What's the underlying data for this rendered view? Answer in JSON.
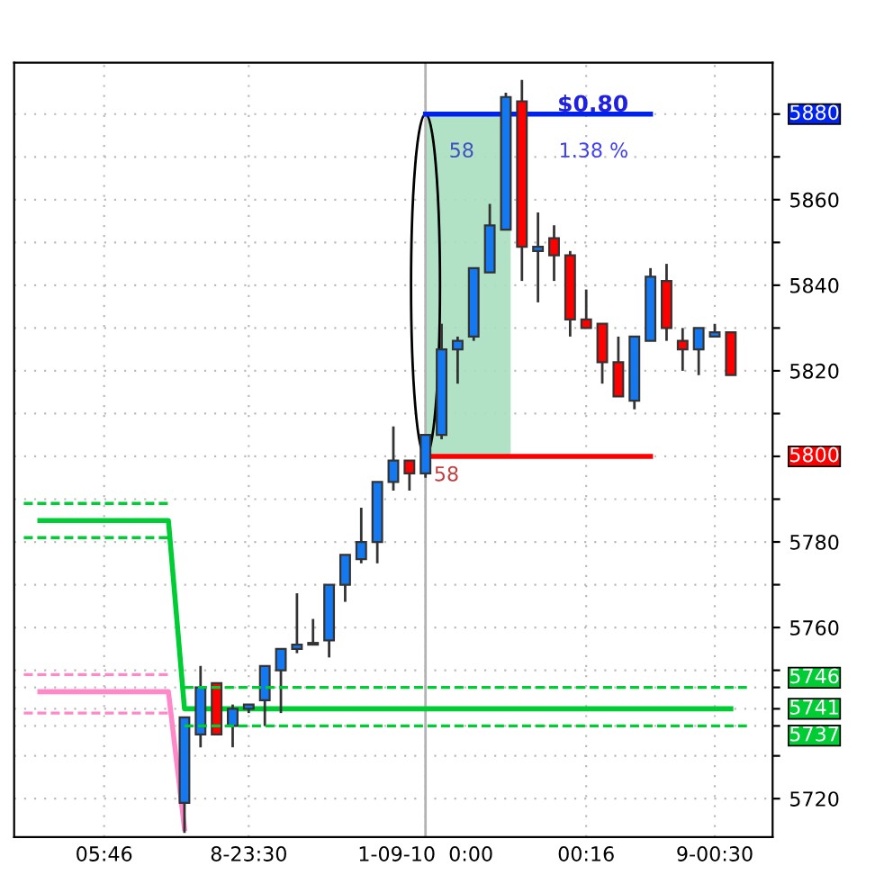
{
  "chart_data": {
    "type": "candlestick",
    "categories": [
      null,
      null,
      null,
      null,
      null,
      "05:46",
      null,
      null,
      null,
      null,
      null,
      null,
      null,
      null,
      "8-23:30",
      null,
      null,
      null,
      null,
      null,
      null,
      null,
      null,
      null,
      null,
      "1-09-10  0:00",
      null,
      null,
      null,
      null,
      null,
      null,
      null,
      null,
      null,
      "00:16",
      null,
      null,
      null,
      null,
      null,
      null,
      null,
      "9-00:30",
      null,
      null,
      null
    ],
    "ohlc": [
      null,
      null,
      null,
      null,
      null,
      null,
      null,
      null,
      null,
      null,
      [
        5719,
        5739,
        5712,
        5739
      ],
      [
        5735,
        5751,
        5732,
        5746
      ],
      [
        5747,
        5747,
        5735,
        5735
      ],
      [
        5737,
        5742,
        5732,
        5741
      ],
      [
        5741,
        5742,
        5740,
        5742
      ],
      [
        5743,
        5751,
        5737,
        5751
      ],
      [
        5750,
        5755,
        5740,
        5755
      ],
      [
        5755,
        5768,
        5754,
        5756
      ],
      [
        5756,
        5762,
        5756,
        5756
      ],
      [
        5757,
        5770,
        5753,
        5770
      ],
      [
        5770,
        5777,
        5766,
        5777
      ],
      [
        5776,
        5788,
        5775,
        5780
      ],
      [
        5780,
        5794,
        5775,
        5794
      ],
      [
        5794,
        5807,
        5792,
        5799
      ],
      [
        5799,
        5799,
        5792,
        5796
      ],
      [
        5796,
        5805,
        5795,
        5805
      ],
      [
        5805,
        5831,
        5804,
        5825
      ],
      [
        5825,
        5828,
        5817,
        5827
      ],
      [
        5828,
        5844,
        5827,
        5844
      ],
      [
        5843,
        5859,
        5843,
        5854
      ],
      [
        5853,
        5885,
        5853,
        5884
      ],
      [
        5883,
        5888,
        5841,
        5849
      ],
      [
        5848,
        5857,
        5836,
        5849
      ],
      [
        5851,
        5854,
        5841,
        5847
      ],
      [
        5847,
        5848,
        5828,
        5832
      ],
      [
        5832,
        5839,
        5830,
        5830
      ],
      [
        5831,
        5831,
        5817,
        5822
      ],
      [
        5822,
        5828,
        5814,
        5814
      ],
      [
        5813,
        5828,
        5811,
        5828
      ],
      [
        5827,
        5844,
        5827,
        5842
      ],
      [
        5841,
        5845,
        5827,
        5830
      ],
      [
        5827,
        5830,
        5820,
        5825
      ],
      [
        5825,
        5830,
        5819,
        5830
      ],
      [
        5828,
        5831,
        5828,
        5829
      ],
      [
        5829,
        5829,
        5819,
        5819
      ],
      null,
      null
    ],
    "colors": [
      null,
      null,
      null,
      null,
      null,
      null,
      null,
      null,
      null,
      null,
      "#1478f0",
      "#1478f0",
      "#ff0000",
      "#1478f0",
      "#1478f0",
      "#1478f0",
      "#1478f0",
      "#1478f0",
      "#1478f0",
      "#1478f0",
      "#1478f0",
      "#1478f0",
      "#1478f0",
      "#1478f0",
      "#ff0000",
      "#1478f0",
      "#1478f0",
      "#1478f0",
      "#1478f0",
      "#1478f0",
      "#1478f0",
      "#ff0000",
      "#1478f0",
      "#ff0000",
      "#ff0000",
      "#ff0000",
      "#ff0000",
      "#ff0000",
      "#1478f0",
      "#1478f0",
      "#ff0000",
      "#ff0000",
      "#1478f0",
      "#1478f0",
      "#ff0000",
      null,
      null
    ],
    "series": [
      {
        "type": "line",
        "color": "#00cc33",
        "line_style": "solid",
        "values": [
          null,
          5785,
          5785,
          5785,
          5785,
          5785,
          5785,
          5785,
          5785,
          5785,
          5741,
          5741,
          5741,
          5741,
          5741,
          5741,
          5741,
          5741,
          5741,
          5741,
          5741,
          5741,
          5741,
          5741,
          5741,
          5741,
          5741,
          5741,
          5741,
          5741,
          5741,
          5741,
          5741,
          5741,
          5741,
          5741,
          5741,
          5741,
          5741,
          5741,
          5741,
          5741,
          5741,
          5741,
          5741,
          null,
          null
        ]
      },
      {
        "type": "line",
        "color": "#00cc33",
        "line_style": "dashed",
        "values": [
          5789,
          5789,
          5789,
          5789,
          5789,
          5789,
          5789,
          5789,
          5789,
          5789,
          null,
          null,
          null,
          null,
          null,
          null,
          null,
          null,
          null,
          null,
          null,
          null,
          null,
          null,
          null,
          null,
          null,
          null,
          null,
          null,
          null,
          null,
          null,
          null,
          null,
          null,
          null,
          null,
          null,
          null,
          null,
          null,
          null,
          null,
          null,
          null,
          null
        ]
      },
      {
        "type": "line",
        "color": "#00cc33",
        "line_style": "dashed",
        "values": [
          5781,
          5781,
          5781,
          5781,
          5781,
          5781,
          5781,
          5781,
          5781,
          5781,
          null,
          null,
          null,
          null,
          null,
          null,
          null,
          null,
          null,
          null,
          null,
          null,
          null,
          null,
          null,
          null,
          null,
          null,
          null,
          null,
          null,
          null,
          null,
          null,
          null,
          null,
          null,
          null,
          null,
          null,
          null,
          null,
          null,
          null,
          null,
          null,
          null
        ]
      },
      {
        "type": "line",
        "color": "#00cc33",
        "line_style": "dashed",
        "values": [
          null,
          null,
          null,
          null,
          null,
          null,
          null,
          null,
          null,
          null,
          5746,
          5746,
          5746,
          5746,
          5746,
          5746,
          5746,
          5746,
          5746,
          5746,
          5746,
          5746,
          5746,
          5746,
          5746,
          5746,
          5746,
          5746,
          5746,
          5746,
          5746,
          5746,
          5746,
          5746,
          5746,
          5746,
          5746,
          5746,
          5746,
          5746,
          5746,
          5746,
          5746,
          5746,
          5746,
          5746,
          null
        ]
      },
      {
        "type": "line",
        "color": "#00cc33",
        "line_style": "dashed",
        "values": [
          null,
          null,
          null,
          null,
          null,
          null,
          null,
          null,
          null,
          null,
          5737,
          5737,
          5737,
          5737,
          5737,
          5737,
          5737,
          5737,
          5737,
          5737,
          5737,
          5737,
          5737,
          5737,
          5737,
          5737,
          5737,
          5737,
          5737,
          5737,
          5737,
          5737,
          5737,
          5737,
          5737,
          5737,
          5737,
          5737,
          5737,
          5737,
          5737,
          5737,
          5737,
          5737,
          5737,
          5737,
          null
        ]
      },
      {
        "type": "line",
        "color": "#ff88c8",
        "line_style": "solid",
        "values": [
          null,
          5745,
          5745,
          5745,
          5745,
          5745,
          5745,
          5745,
          5745,
          5745,
          5713,
          null,
          null,
          null,
          null,
          null,
          null,
          null,
          null,
          null,
          null,
          null,
          null,
          null,
          null,
          null,
          null,
          null,
          null,
          null,
          null,
          null,
          null,
          null,
          null,
          null,
          null,
          null,
          null,
          null,
          null,
          null,
          null,
          null,
          null,
          null,
          null
        ]
      },
      {
        "type": "line",
        "color": "#ff88c8",
        "line_style": "dashed",
        "values": [
          5749,
          5749,
          5749,
          5749,
          5749,
          5749,
          5749,
          5749,
          5749,
          5749,
          null,
          null,
          null,
          null,
          null,
          null,
          null,
          null,
          null,
          null,
          null,
          null,
          null,
          null,
          null,
          null,
          null,
          null,
          null,
          null,
          null,
          null,
          null,
          null,
          null,
          null,
          null,
          null,
          null,
          null,
          null,
          null,
          null,
          null,
          null,
          null,
          null
        ]
      },
      {
        "type": "line",
        "color": "#ff88c8",
        "line_style": "dashed",
        "values": [
          5740,
          5740,
          5740,
          5740,
          5740,
          5740,
          5740,
          5740,
          5740,
          5740,
          null,
          null,
          null,
          null,
          null,
          null,
          null,
          null,
          null,
          null,
          null,
          null,
          null,
          null,
          null,
          null,
          null,
          null,
          null,
          null,
          null,
          null,
          null,
          null,
          null,
          null,
          null,
          null,
          null,
          null,
          null,
          null,
          null,
          null,
          null,
          null,
          null
        ]
      },
      {
        "type": "line",
        "color": "#0022ee",
        "line_style": "solid",
        "values": [
          null,
          null,
          null,
          null,
          null,
          null,
          null,
          null,
          null,
          null,
          null,
          null,
          null,
          null,
          null,
          null,
          null,
          null,
          null,
          null,
          null,
          null,
          null,
          null,
          null,
          5880,
          5880,
          5880,
          5880,
          5880,
          5880,
          5880,
          5880,
          5880,
          5880,
          5880,
          5880,
          5880,
          5880,
          5880,
          null,
          null,
          null,
          null,
          null,
          null,
          null
        ]
      },
      {
        "type": "line",
        "color": "#ff0000",
        "line_style": "solid",
        "values": [
          null,
          null,
          null,
          null,
          null,
          null,
          null,
          null,
          null,
          null,
          null,
          null,
          null,
          null,
          null,
          null,
          null,
          null,
          null,
          null,
          null,
          null,
          null,
          null,
          null,
          5800,
          5800,
          5800,
          5800,
          5800,
          5800,
          5800,
          5800,
          5800,
          5800,
          5800,
          5800,
          5800,
          5800,
          5800,
          null,
          null,
          null,
          null,
          null,
          null,
          null
        ]
      }
    ],
    "bands": [
      {
        "axis": "y",
        "from": 5800,
        "to": 5880,
        "color": "#a8dfc0"
      }
    ],
    "ref_lines": [
      {
        "axis": "x",
        "value": "1-09-10  0:00",
        "color": "#b4b4b4"
      }
    ],
    "annotations": [
      "$0.80",
      "1.38 %",
      "58",
      "58"
    ],
    "ylim": [
      5711,
      5892
    ],
    "yticks": [
      5720,
      {
        "value": 5730,
        "label": null
      },
      5737,
      5741,
      5746,
      {
        "value": 5750,
        "label": null
      },
      5760,
      {
        "value": 5770,
        "label": null
      },
      5780,
      {
        "value": 5790,
        "label": null
      },
      5800,
      {
        "value": 5810,
        "label": null
      },
      5820,
      {
        "value": 5830,
        "label": null
      },
      5840,
      {
        "value": 5850,
        "label": null
      },
      5860,
      {
        "value": 5870,
        "label": null
      },
      5880
    ],
    "grid": true
  }
}
